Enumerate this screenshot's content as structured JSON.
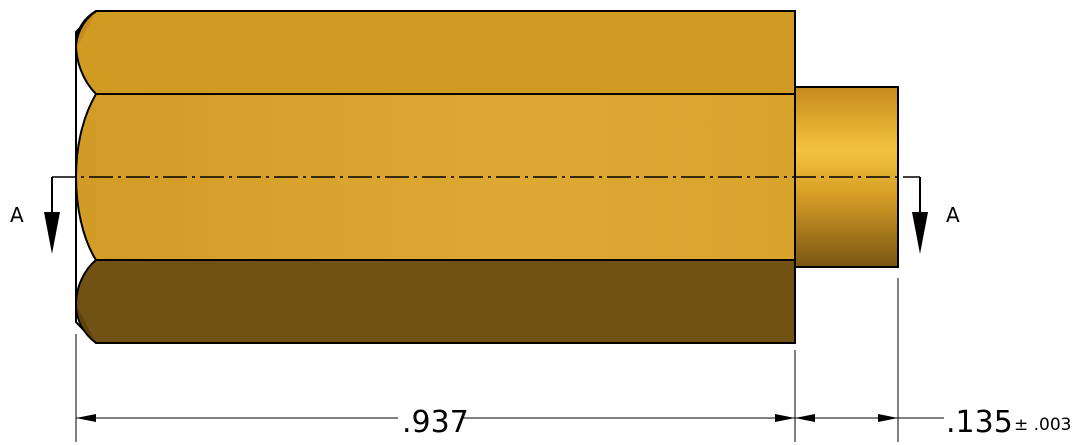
{
  "section_marker": {
    "left_label": "A",
    "right_label": "A"
  },
  "dimensions": {
    "overall_length": ".937",
    "shank_length": ".135",
    "shank_tolerance": "± .003"
  },
  "colors": {
    "hex_top_face": "#d19a22",
    "hex_middle_face": "#d9a42d",
    "hex_bottom_face": "#715114",
    "shank_highlight": "#f3c33d",
    "shank_shadow": "#7a5612",
    "outline": "#000000"
  }
}
